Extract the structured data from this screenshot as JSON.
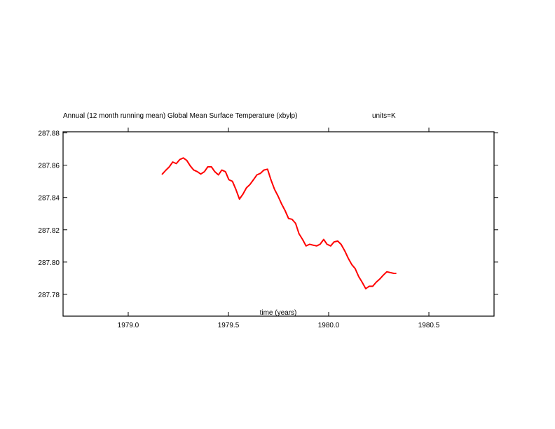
{
  "chart_data": {
    "type": "line",
    "title": "Annual (12 month running mean) Global Mean Surface Temperature (xbylp)",
    "units_label": "units=K",
    "xlabel": "time (years)",
    "ylabel": "",
    "xlim": [
      1978.675,
      1980.825
    ],
    "ylim": [
      287.7665,
      287.8807
    ],
    "x_ticks": [
      1979.0,
      1979.5,
      1980.0,
      1980.5
    ],
    "x_tick_labels": [
      "1979.0",
      "1979.5",
      "1980.0",
      "1980.5"
    ],
    "y_ticks": [
      287.78,
      287.8,
      287.82,
      287.84,
      287.86,
      287.88
    ],
    "y_tick_labels": [
      "287.78",
      "287.80",
      "287.82",
      "287.84",
      "287.86",
      "287.88"
    ],
    "grid": false,
    "line_color": "#ff0000",
    "series": [
      {
        "x": [
          1979.17,
          1979.187,
          1979.205,
          1979.222,
          1979.24,
          1979.257,
          1979.275,
          1979.292,
          1979.31,
          1979.327,
          1979.345,
          1979.362,
          1979.38,
          1979.397,
          1979.415,
          1979.432,
          1979.45,
          1979.467,
          1979.485,
          1979.502,
          1979.52,
          1979.537,
          1979.555,
          1979.572,
          1979.59,
          1979.607,
          1979.625,
          1979.642,
          1979.66,
          1979.677,
          1979.695,
          1979.712,
          1979.73,
          1979.747,
          1979.765,
          1979.782,
          1979.8,
          1979.817,
          1979.835,
          1979.852,
          1979.87,
          1979.887,
          1979.905,
          1979.922,
          1979.94,
          1979.957,
          1979.975,
          1979.992,
          1980.01,
          1980.027,
          1980.045,
          1980.062,
          1980.08,
          1980.097,
          1980.115,
          1980.132,
          1980.15,
          1980.167,
          1980.185,
          1980.202,
          1980.22,
          1980.237,
          1980.255,
          1980.272,
          1980.29,
          1980.307,
          1980.325,
          1980.335
        ],
        "y": [
          287.8545,
          287.8568,
          287.859,
          287.862,
          287.861,
          287.8635,
          287.8645,
          287.863,
          287.8595,
          287.857,
          287.856,
          287.8545,
          287.856,
          287.859,
          287.859,
          287.856,
          287.854,
          287.857,
          287.856,
          287.851,
          287.85,
          287.845,
          287.839,
          287.842,
          287.846,
          287.848,
          287.851,
          287.854,
          287.855,
          287.857,
          287.8575,
          287.851,
          287.845,
          287.841,
          287.836,
          287.832,
          287.827,
          287.8265,
          287.824,
          287.8175,
          287.814,
          287.81,
          287.811,
          287.8105,
          287.81,
          287.811,
          287.814,
          287.811,
          287.81,
          287.8125,
          287.813,
          287.811,
          287.807,
          287.8025,
          287.7985,
          287.796,
          287.791,
          287.7875,
          287.7835,
          287.785,
          287.785,
          287.7875,
          287.7895,
          287.7918,
          287.794,
          287.7935,
          287.793,
          287.793
        ]
      }
    ]
  }
}
